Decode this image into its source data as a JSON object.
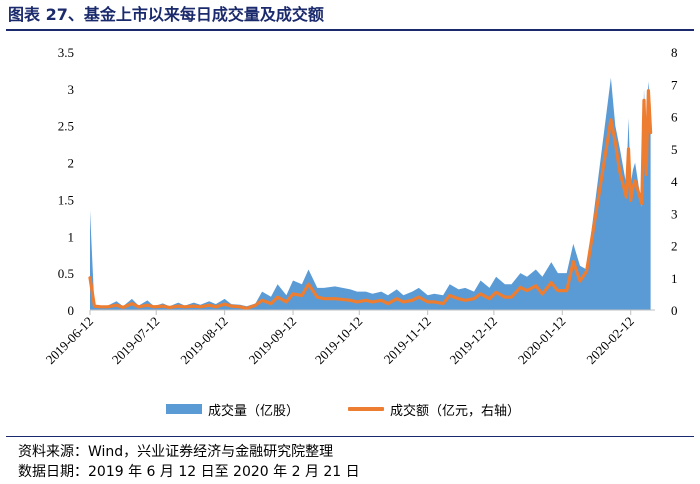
{
  "title": "图表 27、基金上市以来每日成交量及成交额",
  "footer": {
    "source": "资料来源：Wind，兴业证券经济与金融研究院整理",
    "date": "数据日期：2019 年 6 月 12 日至 2020 年 2 月 21 日"
  },
  "colors": {
    "volume": "#5b9bd5",
    "amount": "#ed7d31",
    "title": "#1a2a6c"
  },
  "chart_data": {
    "type": "area",
    "x_ticks": [
      "2019-06-12",
      "2019-07-12",
      "2019-08-12",
      "2019-09-12",
      "2019-10-12",
      "2019-11-12",
      "2019-12-12",
      "2020-01-12",
      "2020-02-12"
    ],
    "y_left": {
      "ticks": [
        "0",
        "0.5",
        "1",
        "1.5",
        "2",
        "2.5",
        "3",
        "3.5"
      ],
      "ylim": [
        0,
        3.5
      ]
    },
    "y_right": {
      "ticks": [
        "0",
        "1",
        "2",
        "3",
        "4",
        "5",
        "6",
        "7",
        "8"
      ],
      "ylim": [
        0,
        8
      ]
    },
    "legend_position": "bottom",
    "series": [
      {
        "name": "成交量（亿股）",
        "kind": "area",
        "axis": "left",
        "points": [
          [
            "2019-06-12",
            1.35
          ],
          [
            "2019-06-14",
            0.05
          ],
          [
            "2019-06-17",
            0.04
          ],
          [
            "2019-06-20",
            0.06
          ],
          [
            "2019-06-24",
            0.12
          ],
          [
            "2019-06-27",
            0.05
          ],
          [
            "2019-07-01",
            0.15
          ],
          [
            "2019-07-04",
            0.06
          ],
          [
            "2019-07-08",
            0.13
          ],
          [
            "2019-07-11",
            0.05
          ],
          [
            "2019-07-15",
            0.09
          ],
          [
            "2019-07-18",
            0.05
          ],
          [
            "2019-07-22",
            0.1
          ],
          [
            "2019-07-25",
            0.06
          ],
          [
            "2019-07-29",
            0.1
          ],
          [
            "2019-08-01",
            0.07
          ],
          [
            "2019-08-05",
            0.12
          ],
          [
            "2019-08-08",
            0.08
          ],
          [
            "2019-08-12",
            0.15
          ],
          [
            "2019-08-15",
            0.08
          ],
          [
            "2019-08-19",
            0.07
          ],
          [
            "2019-08-22",
            0.05
          ],
          [
            "2019-08-26",
            0.09
          ],
          [
            "2019-08-29",
            0.25
          ],
          [
            "2019-09-02",
            0.18
          ],
          [
            "2019-09-05",
            0.35
          ],
          [
            "2019-09-09",
            0.2
          ],
          [
            "2019-09-12",
            0.4
          ],
          [
            "2019-09-16",
            0.35
          ],
          [
            "2019-09-19",
            0.55
          ],
          [
            "2019-09-23",
            0.3
          ],
          [
            "2019-09-26",
            0.3
          ],
          [
            "2019-10-01",
            0.32
          ],
          [
            "2019-10-08",
            0.28
          ],
          [
            "2019-10-11",
            0.25
          ],
          [
            "2019-10-15",
            0.25
          ],
          [
            "2019-10-18",
            0.22
          ],
          [
            "2019-10-22",
            0.25
          ],
          [
            "2019-10-25",
            0.2
          ],
          [
            "2019-10-29",
            0.28
          ],
          [
            "2019-11-01",
            0.2
          ],
          [
            "2019-11-05",
            0.25
          ],
          [
            "2019-11-08",
            0.3
          ],
          [
            "2019-11-12",
            0.2
          ],
          [
            "2019-11-15",
            0.22
          ],
          [
            "2019-11-19",
            0.2
          ],
          [
            "2019-11-22",
            0.35
          ],
          [
            "2019-11-26",
            0.28
          ],
          [
            "2019-11-29",
            0.3
          ],
          [
            "2019-12-03",
            0.25
          ],
          [
            "2019-12-06",
            0.4
          ],
          [
            "2019-12-10",
            0.3
          ],
          [
            "2019-12-13",
            0.45
          ],
          [
            "2019-12-17",
            0.35
          ],
          [
            "2019-12-20",
            0.35
          ],
          [
            "2019-12-24",
            0.5
          ],
          [
            "2019-12-27",
            0.45
          ],
          [
            "2019-12-31",
            0.55
          ],
          [
            "2020-01-03",
            0.45
          ],
          [
            "2020-01-07",
            0.65
          ],
          [
            "2020-01-10",
            0.5
          ],
          [
            "2020-01-14",
            0.5
          ],
          [
            "2020-01-17",
            0.9
          ],
          [
            "2020-01-20",
            0.6
          ],
          [
            "2020-01-23",
            0.55
          ],
          [
            "2020-02-03",
            3.15
          ],
          [
            "2020-02-05",
            2.5
          ],
          [
            "2020-02-07",
            2.2
          ],
          [
            "2020-02-10",
            1.7
          ],
          [
            "2020-02-11",
            2.6
          ],
          [
            "2020-02-12",
            1.7
          ],
          [
            "2020-02-13",
            1.9
          ],
          [
            "2020-02-14",
            2.0
          ],
          [
            "2020-02-17",
            1.4
          ],
          [
            "2020-02-18",
            3.0
          ],
          [
            "2020-02-19",
            2.2
          ],
          [
            "2020-02-20",
            3.1
          ],
          [
            "2020-02-21",
            2.8
          ]
        ]
      },
      {
        "name": "成交额（亿元，右轴）",
        "kind": "line",
        "axis": "right",
        "points": [
          [
            "2019-06-12",
            1.0
          ],
          [
            "2019-06-14",
            0.12
          ],
          [
            "2019-06-17",
            0.1
          ],
          [
            "2019-06-20",
            0.1
          ],
          [
            "2019-06-24",
            0.15
          ],
          [
            "2019-06-27",
            0.08
          ],
          [
            "2019-07-01",
            0.2
          ],
          [
            "2019-07-04",
            0.1
          ],
          [
            "2019-07-08",
            0.15
          ],
          [
            "2019-07-11",
            0.1
          ],
          [
            "2019-07-15",
            0.12
          ],
          [
            "2019-07-18",
            0.08
          ],
          [
            "2019-07-22",
            0.12
          ],
          [
            "2019-07-25",
            0.1
          ],
          [
            "2019-07-29",
            0.12
          ],
          [
            "2019-08-01",
            0.1
          ],
          [
            "2019-08-05",
            0.15
          ],
          [
            "2019-08-08",
            0.1
          ],
          [
            "2019-08-12",
            0.18
          ],
          [
            "2019-08-15",
            0.12
          ],
          [
            "2019-08-19",
            0.1
          ],
          [
            "2019-08-22",
            0.05
          ],
          [
            "2019-08-26",
            0.15
          ],
          [
            "2019-08-29",
            0.3
          ],
          [
            "2019-09-02",
            0.2
          ],
          [
            "2019-09-05",
            0.4
          ],
          [
            "2019-09-09",
            0.25
          ],
          [
            "2019-09-12",
            0.5
          ],
          [
            "2019-09-16",
            0.45
          ],
          [
            "2019-09-19",
            0.8
          ],
          [
            "2019-09-23",
            0.4
          ],
          [
            "2019-09-26",
            0.35
          ],
          [
            "2019-10-01",
            0.35
          ],
          [
            "2019-10-08",
            0.3
          ],
          [
            "2019-10-11",
            0.25
          ],
          [
            "2019-10-15",
            0.3
          ],
          [
            "2019-10-18",
            0.25
          ],
          [
            "2019-10-22",
            0.3
          ],
          [
            "2019-10-25",
            0.2
          ],
          [
            "2019-10-29",
            0.35
          ],
          [
            "2019-11-01",
            0.25
          ],
          [
            "2019-11-05",
            0.3
          ],
          [
            "2019-11-08",
            0.4
          ],
          [
            "2019-11-12",
            0.25
          ],
          [
            "2019-11-15",
            0.25
          ],
          [
            "2019-11-19",
            0.2
          ],
          [
            "2019-11-22",
            0.45
          ],
          [
            "2019-11-26",
            0.35
          ],
          [
            "2019-11-29",
            0.3
          ],
          [
            "2019-12-03",
            0.35
          ],
          [
            "2019-12-06",
            0.5
          ],
          [
            "2019-12-10",
            0.35
          ],
          [
            "2019-12-13",
            0.55
          ],
          [
            "2019-12-17",
            0.4
          ],
          [
            "2019-12-20",
            0.4
          ],
          [
            "2019-12-24",
            0.7
          ],
          [
            "2019-12-27",
            0.6
          ],
          [
            "2019-12-31",
            0.75
          ],
          [
            "2020-01-03",
            0.5
          ],
          [
            "2020-01-07",
            0.85
          ],
          [
            "2020-01-10",
            0.6
          ],
          [
            "2020-01-14",
            0.6
          ],
          [
            "2020-01-17",
            1.5
          ],
          [
            "2020-01-20",
            0.9
          ],
          [
            "2020-01-23",
            1.2
          ],
          [
            "2020-02-03",
            5.9
          ],
          [
            "2020-02-05",
            5.2
          ],
          [
            "2020-02-07",
            4.3
          ],
          [
            "2020-02-10",
            3.5
          ],
          [
            "2020-02-11",
            5.0
          ],
          [
            "2020-02-12",
            3.4
          ],
          [
            "2020-02-13",
            3.8
          ],
          [
            "2020-02-14",
            4.0
          ],
          [
            "2020-02-17",
            3.3
          ],
          [
            "2020-02-18",
            6.5
          ],
          [
            "2020-02-19",
            4.2
          ],
          [
            "2020-02-20",
            6.8
          ],
          [
            "2020-02-21",
            5.5
          ]
        ]
      }
    ]
  }
}
